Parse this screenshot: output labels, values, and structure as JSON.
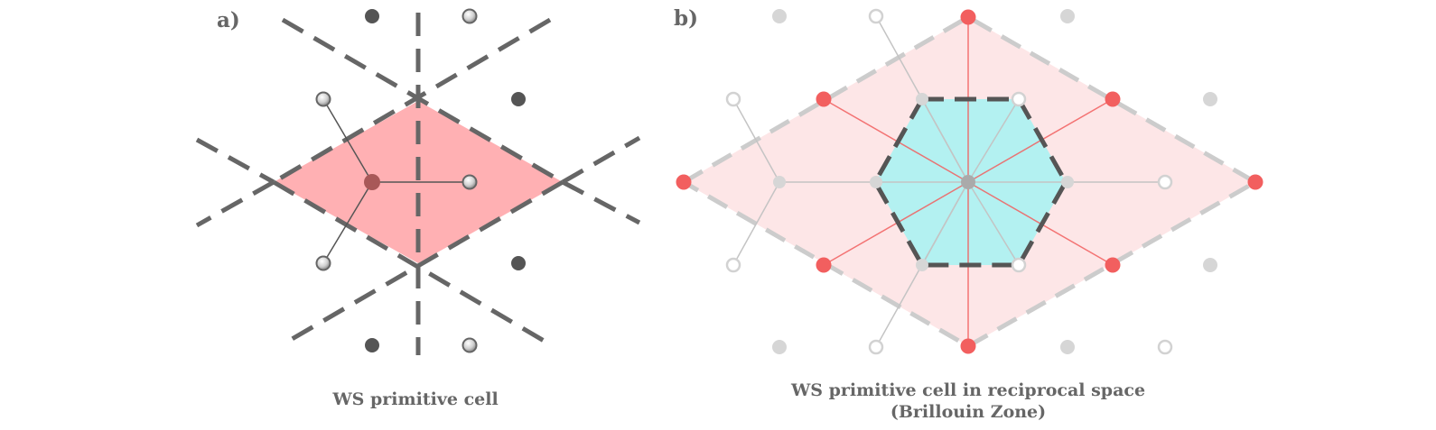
{
  "panels": [
    {
      "label": "a)",
      "caption": "WS primitive cell",
      "colors": {
        "cell_fill": "#ffb0b3",
        "boundary": "#666666",
        "lattice_point": "#555555",
        "neighbor_point": "#b0b0b0",
        "center_point": "#a85858"
      }
    },
    {
      "label": "b)",
      "caption_line1": "WS primitive cell in reciprocal space",
      "caption_line2": "(Brillouin Zone)",
      "colors": {
        "cell_fill": "#fde6e7",
        "zone_fill": "#b3f1f1",
        "zone_boundary": "#555555",
        "outer_boundary": "#cccccc",
        "reciprocal_point": "#f25f5f",
        "lattice_point": "#d6d6d6",
        "center_point": "#aaaaaa"
      }
    }
  ]
}
